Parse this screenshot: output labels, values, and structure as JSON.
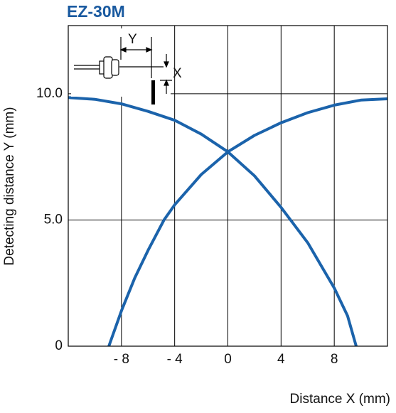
{
  "chart_data": {
    "type": "line",
    "title": "EZ-30M",
    "x_label": "Distance X (mm)",
    "y_label": "Detecting distance Y (mm)",
    "annotations": [
      "Y",
      "X"
    ],
    "xlim": [
      -12,
      12
    ],
    "ylim": [
      0,
      12.7
    ],
    "xticks": [
      {
        "value": -8,
        "label": "- 8"
      },
      {
        "value": -4,
        "label": "- 4"
      },
      0,
      4,
      8
    ],
    "yticks": [
      0,
      {
        "value": 5,
        "label": "5.0"
      },
      {
        "value": 10,
        "label": "10.0"
      }
    ],
    "grid": true,
    "series": [
      {
        "color": "#1b63ab",
        "x": [
          -12,
          -10,
          -8,
          -6,
          -4,
          -2,
          0,
          2,
          4,
          6,
          8,
          9,
          9.65
        ],
        "values": [
          9.85,
          9.78,
          9.6,
          9.3,
          8.95,
          8.4,
          7.7,
          6.75,
          5.5,
          4.1,
          2.3,
          1.2,
          0
        ]
      },
      {
        "color": "#1b63ab",
        "x": [
          -8.95,
          -8,
          -7,
          -6,
          -4.8,
          -4,
          -2,
          0,
          2,
          4,
          6,
          8,
          10,
          12
        ],
        "values": [
          0,
          1.4,
          2.7,
          3.8,
          5.0,
          5.6,
          6.8,
          7.7,
          8.35,
          8.85,
          9.25,
          9.55,
          9.75,
          9.8
        ]
      }
    ]
  }
}
